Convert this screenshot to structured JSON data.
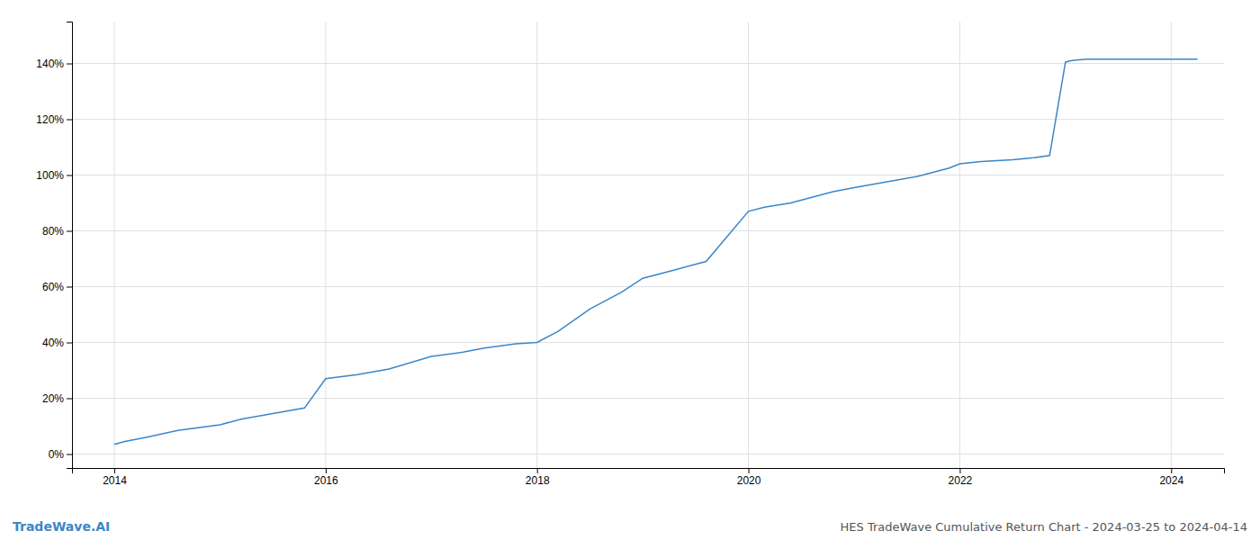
{
  "chart_data": {
    "type": "line",
    "title": "HES TradeWave Cumulative Return Chart - 2024-03-25 to 2024-04-14",
    "annotations": [
      "TradeWave.AI"
    ],
    "color": "#3a87c8",
    "x": [
      2014.0,
      2014.1,
      2014.3,
      2014.6,
      2015.0,
      2015.2,
      2015.5,
      2015.8,
      2016.0,
      2016.3,
      2016.6,
      2017.0,
      2017.3,
      2017.5,
      2017.8,
      2018.0,
      2018.2,
      2018.5,
      2018.8,
      2019.0,
      2019.3,
      2019.6,
      2020.0,
      2020.15,
      2020.4,
      2020.6,
      2020.8,
      2021.0,
      2021.3,
      2021.6,
      2021.9,
      2022.0,
      2022.2,
      2022.5,
      2022.7,
      2022.85,
      2023.0,
      2023.05,
      2023.1,
      2023.2,
      2024.0,
      2024.1,
      2024.25
    ],
    "values": [
      3.5,
      4.5,
      6.0,
      8.5,
      10.5,
      12.5,
      14.5,
      16.5,
      27.0,
      28.5,
      30.5,
      35.0,
      36.5,
      38.0,
      39.5,
      40.0,
      44.0,
      52.0,
      58.0,
      63.0,
      66.0,
      69.0,
      87.0,
      88.5,
      90.0,
      92.0,
      94.0,
      95.5,
      97.5,
      99.5,
      102.5,
      104.0,
      104.8,
      105.5,
      106.2,
      107.0,
      140.5,
      141.0,
      141.2,
      141.5,
      141.5,
      141.5,
      141.5
    ],
    "xlim": [
      2013.6,
      2024.5
    ],
    "ylim": [
      -5,
      155
    ],
    "xticks": [
      2014,
      2016,
      2018,
      2020,
      2022,
      2024
    ],
    "yticks": [
      {
        "value": 0,
        "label": "0%"
      },
      {
        "value": 20,
        "label": "20%"
      },
      {
        "value": 40,
        "label": "40%"
      },
      {
        "value": 60,
        "label": "60%"
      },
      {
        "value": 80,
        "label": "80%"
      },
      {
        "value": 100,
        "label": "100%"
      },
      {
        "value": 120,
        "label": "120%"
      },
      {
        "value": 140,
        "label": "140%"
      }
    ],
    "grid": true
  }
}
